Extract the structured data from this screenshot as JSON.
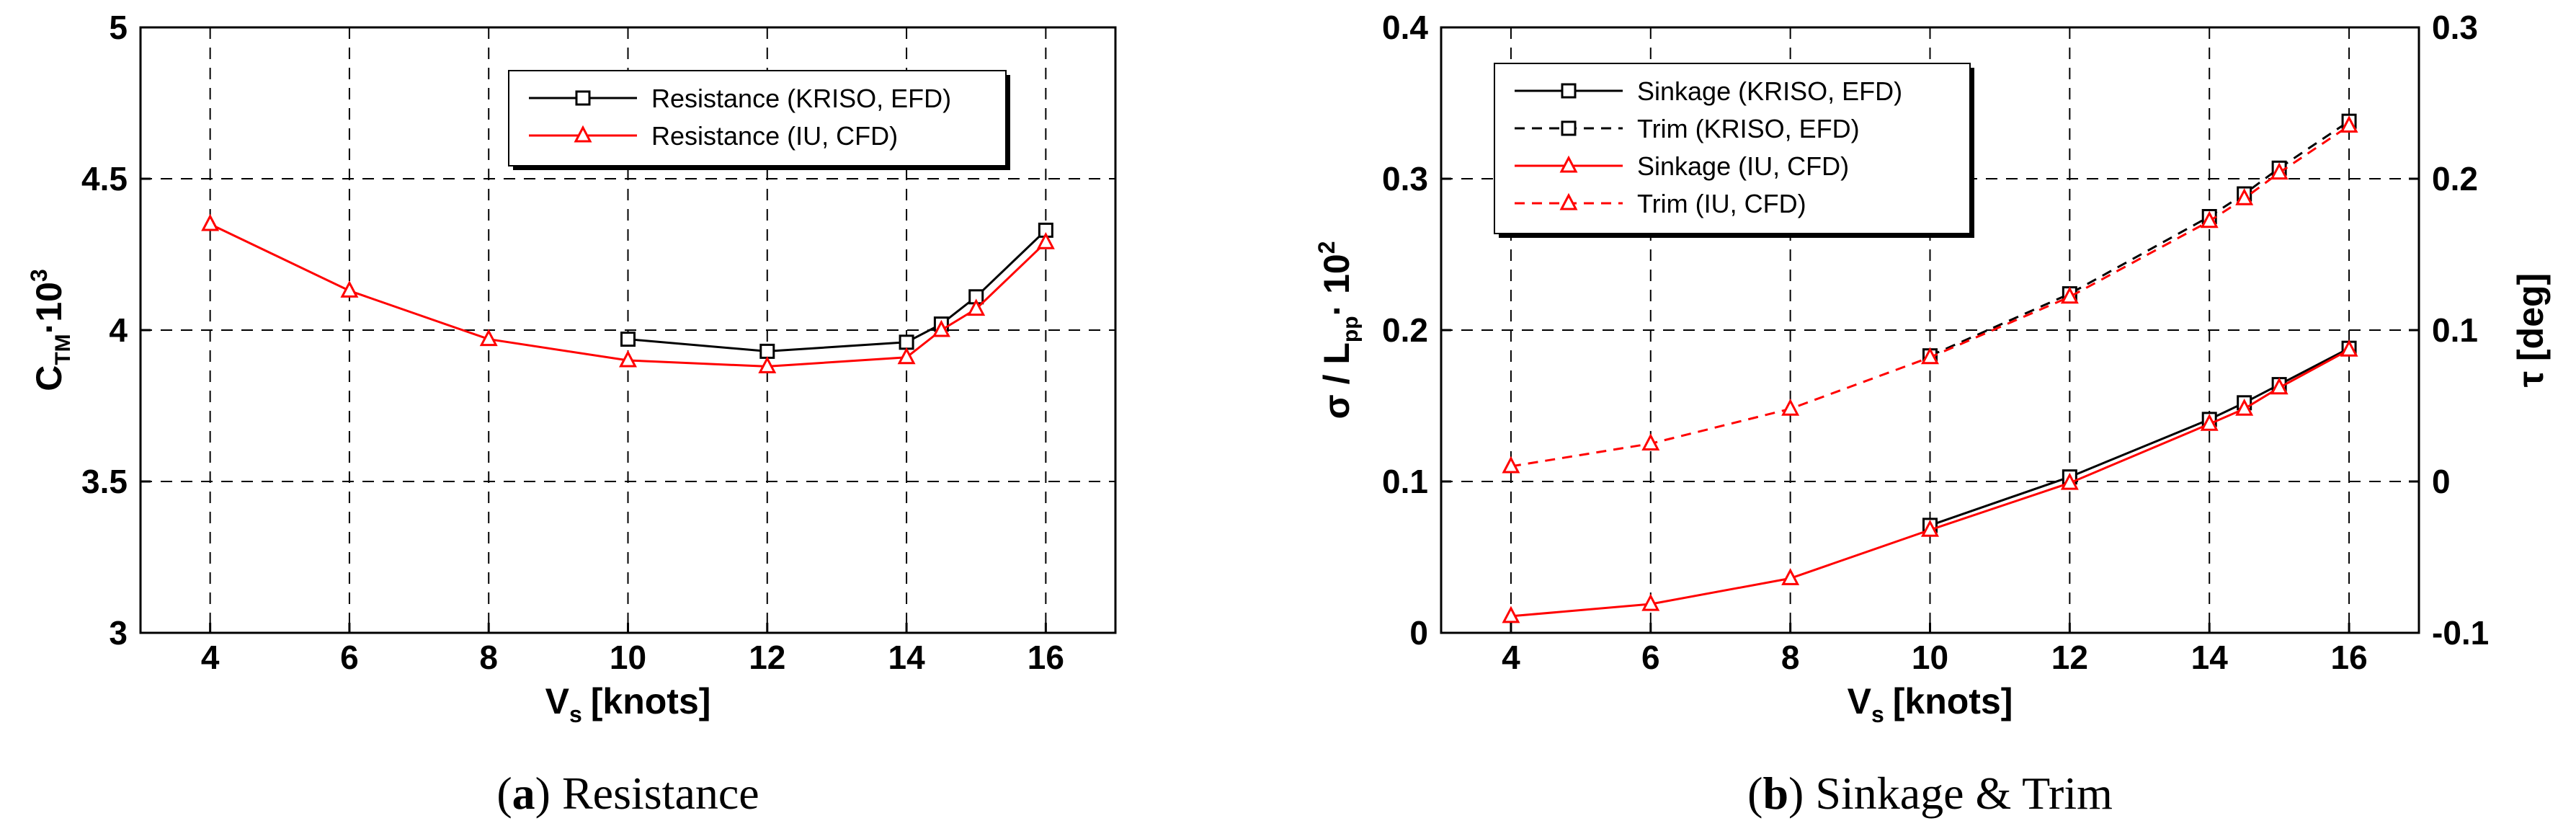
{
  "chart_data": [
    {
      "type": "line",
      "panel": "a",
      "caption_letter": "a",
      "caption_text": "Resistance",
      "xlabel_main": "V",
      "xlabel_sub": "s",
      "xlabel_rest": "[knots]",
      "ylabel_main": "C",
      "ylabel_sub": "TM",
      "ylabel_mult": "·10",
      "ylabel_sup": "3",
      "xlim": [
        3,
        17
      ],
      "ylim": [
        3,
        5
      ],
      "xticks": [
        "4",
        "6",
        "8",
        "10",
        "12",
        "14",
        "16"
      ],
      "yticks": [
        "3",
        "3.5",
        "4",
        "4.5",
        "5"
      ],
      "legend_position": "top-right",
      "series": [
        {
          "name": "Resistance (KRISO, EFD)",
          "color": "#000000",
          "marker": "square",
          "dash": "solid",
          "x": [
            10,
            12,
            14,
            14.5,
            15,
            16
          ],
          "y": [
            3.97,
            3.93,
            3.96,
            4.02,
            4.11,
            4.33
          ]
        },
        {
          "name": "Resistance (IU, CFD)",
          "color": "#ff0000",
          "marker": "triangle",
          "dash": "solid",
          "x": [
            4,
            6,
            8,
            10,
            12,
            14,
            14.5,
            15,
            16
          ],
          "y": [
            4.35,
            4.13,
            3.97,
            3.9,
            3.88,
            3.91,
            4.0,
            4.07,
            4.29
          ]
        }
      ]
    },
    {
      "type": "line",
      "panel": "b",
      "caption_letter": "b",
      "caption_text": "Sinkage & Trim",
      "xlabel_main": "V",
      "xlabel_sub": "s",
      "xlabel_rest": "[knots]",
      "ylabel_left_main": "σ / L",
      "ylabel_left_sub": "pp",
      "ylabel_left_mult": "· 10",
      "ylabel_left_sup": "2",
      "ylabel_right": "τ [deg]",
      "xlim": [
        3,
        17
      ],
      "ylim_left": [
        0,
        0.4
      ],
      "ylim_right": [
        -0.1,
        0.3
      ],
      "xticks": [
        "4",
        "6",
        "8",
        "10",
        "12",
        "14",
        "16"
      ],
      "yticks_left": [
        "0",
        "0.1",
        "0.2",
        "0.3",
        "0.4"
      ],
      "yticks_right": [
        "-0.1",
        "0",
        "0.1",
        "0.2",
        "0.3"
      ],
      "legend_position": "top-left",
      "series": [
        {
          "name": "Sinkage (KRISO, EFD)",
          "color": "#000000",
          "marker": "square",
          "dash": "solid",
          "axis": "left",
          "x": [
            10,
            12,
            14,
            14.5,
            15,
            16
          ],
          "y": [
            0.071,
            0.103,
            0.141,
            0.152,
            0.164,
            0.188
          ]
        },
        {
          "name": "Trim (KRISO, EFD)",
          "color": "#000000",
          "marker": "square",
          "dash": "dashed",
          "axis": "right",
          "x": [
            10,
            12,
            14,
            14.5,
            15,
            16
          ],
          "y": [
            0.083,
            0.124,
            0.175,
            0.19,
            0.207,
            0.238
          ]
        },
        {
          "name": "Sinkage (IU, CFD)",
          "color": "#ff0000",
          "marker": "triangle",
          "dash": "solid",
          "axis": "left",
          "x": [
            4,
            6,
            8,
            10,
            12,
            14,
            14.5,
            15,
            16
          ],
          "y": [
            0.011,
            0.019,
            0.036,
            0.068,
            0.099,
            0.138,
            0.148,
            0.162,
            0.187
          ]
        },
        {
          "name": "Trim (IU, CFD)",
          "color": "#ff0000",
          "marker": "triangle",
          "dash": "dashed",
          "axis": "right",
          "x": [
            4,
            6,
            8,
            10,
            12,
            14,
            14.5,
            15,
            16
          ],
          "y": [
            0.01,
            0.025,
            0.048,
            0.082,
            0.122,
            0.172,
            0.187,
            0.204,
            0.235
          ]
        }
      ]
    }
  ]
}
